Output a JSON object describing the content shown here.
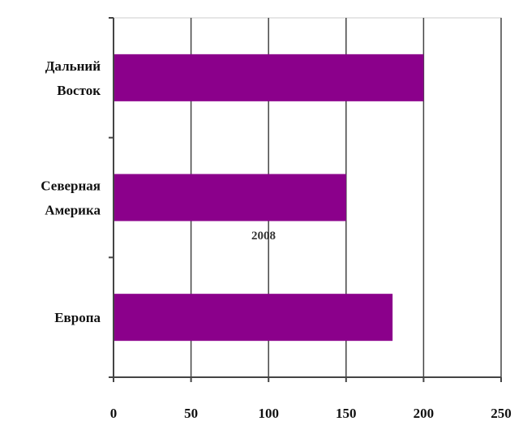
{
  "chart_data": {
    "type": "bar",
    "orientation": "horizontal",
    "categories": [
      [
        "Дальний",
        "Восток"
      ],
      [
        "Северная",
        "Америка"
      ],
      [
        "Европа"
      ]
    ],
    "values": [
      200,
      150,
      180
    ],
    "xlim": [
      0,
      250
    ],
    "xticks": [
      "0",
      "50",
      "100",
      "150",
      "200",
      "250"
    ],
    "grid": true,
    "overlay_text": "2008",
    "colors": {
      "bar": "#8B008B",
      "grid": "#444444",
      "axis": "#444444"
    }
  }
}
